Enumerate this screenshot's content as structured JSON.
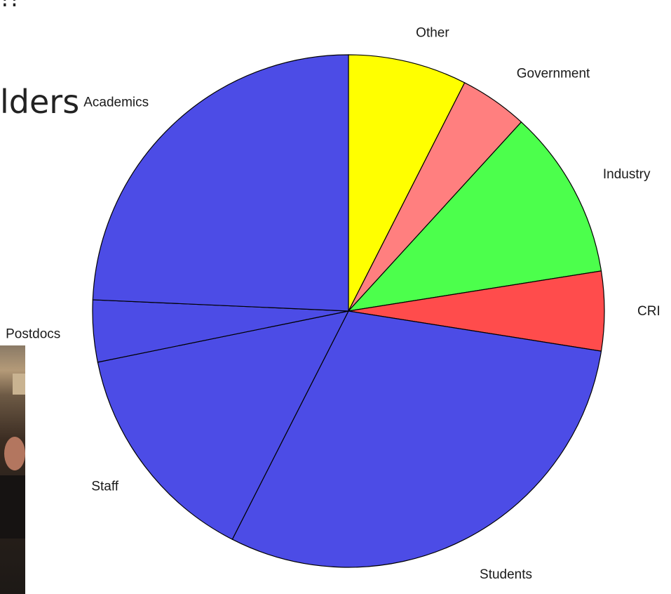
{
  "slide": {
    "title_top_fragment": "!!",
    "title_fragment": "lders"
  },
  "photo": {
    "icon": "photo-crowd"
  },
  "chart_data": {
    "type": "pie",
    "title": "",
    "start_angle_deg": 90,
    "direction": "clockwise",
    "slices": [
      {
        "label": "Other",
        "value": 7.5,
        "color": "#FFFF00"
      },
      {
        "label": "Government",
        "value": 4.3,
        "color": "#FF7F7F"
      },
      {
        "label": "Industry",
        "value": 10.7,
        "color": "#4CFF4C"
      },
      {
        "label": "CRI",
        "value": 5.0,
        "color": "#FF4C4C"
      },
      {
        "label": "Students",
        "value": 30.0,
        "color": "#4C4CE6"
      },
      {
        "label": "Staff",
        "value": 14.3,
        "color": "#4C4CE6"
      },
      {
        "label": "Postdocs",
        "value": 3.9,
        "color": "#4C4CE6"
      },
      {
        "label": "Academics",
        "value": 24.3,
        "color": "#4C4CE6"
      }
    ]
  }
}
